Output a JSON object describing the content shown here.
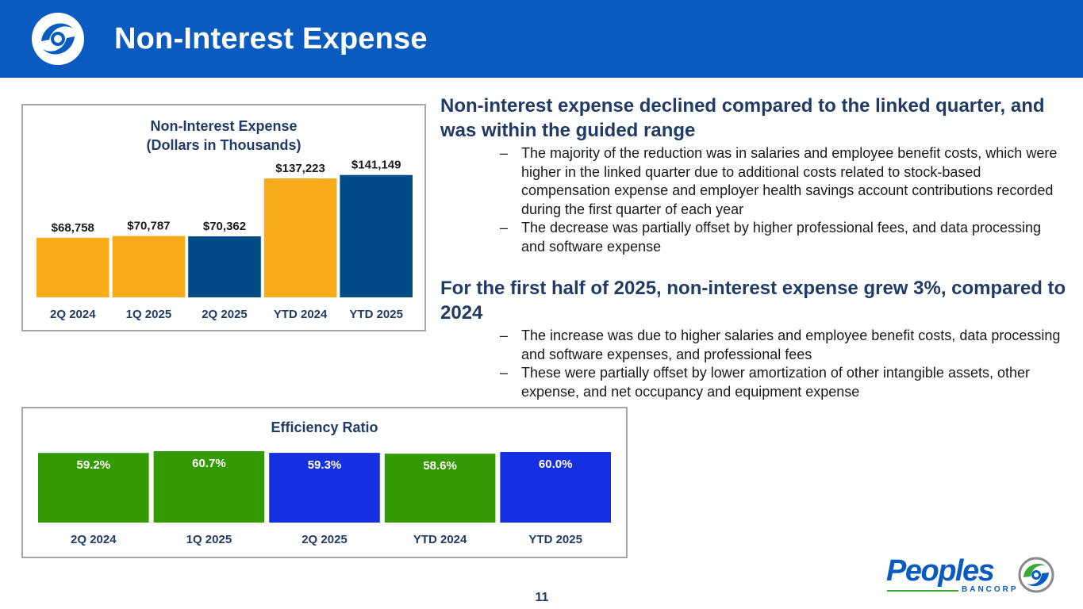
{
  "header": {
    "title": "Non-Interest Expense",
    "background_color": "#0a5bbf"
  },
  "chart_data": [
    {
      "type": "bar",
      "title_line1": "Non-Interest Expense",
      "title_line2": "(Dollars in Thousands)",
      "categories": [
        "2Q 2024",
        "1Q 2025",
        "2Q 2025",
        "YTD 2024",
        "YTD 2025"
      ],
      "values": [
        68758,
        70787,
        70362,
        137223,
        141149
      ],
      "labels": [
        "$68,758",
        "$70,787",
        "$70,362",
        "$137,223",
        "$141,149"
      ],
      "colors": [
        "#f9ac1b",
        "#f9ac1b",
        "#004a86",
        "#f9ac1b",
        "#004a86"
      ],
      "ylim": [
        0,
        150000
      ],
      "xlabel": "",
      "ylabel": "",
      "grid": false
    },
    {
      "type": "bar",
      "title": "Efficiency Ratio",
      "categories": [
        "2Q 2024",
        "1Q 2025",
        "2Q 2025",
        "YTD 2024",
        "YTD 2025"
      ],
      "values": [
        59.2,
        60.7,
        59.3,
        58.6,
        60.0
      ],
      "labels": [
        "59.2%",
        "60.7%",
        "59.3%",
        "58.6%",
        "60.0%"
      ],
      "colors": [
        "#339a02",
        "#339a02",
        "#1430e0",
        "#339a02",
        "#1430e0"
      ],
      "ylim": [
        0,
        60.7
      ],
      "xlabel": "",
      "ylabel": "",
      "grid": false
    }
  ],
  "commentary": {
    "section1": {
      "heading": "Non-interest expense declined compared to the linked quarter, and was within the guided range",
      "bullets": [
        "The majority of the reduction was in salaries and employee benefit costs, which were higher in the linked quarter due to additional costs related to stock-based compensation expense and employer health savings account contributions recorded during the first quarter of each year",
        "The decrease was partially offset by higher professional fees, and data processing and software expense"
      ]
    },
    "section2": {
      "heading": "For the first half of 2025, non-interest expense grew 3%, compared to 2024",
      "bullets": [
        "The increase was due to higher salaries and employee benefit costs, data processing and software expenses, and professional fees",
        "These were partially offset by lower amortization of other intangible assets, other expense, and net occupancy and equipment expense"
      ]
    },
    "dash": "–"
  },
  "footer": {
    "brand_name": "Peoples",
    "brand_sub": "BANCORP",
    "page_number": "11"
  }
}
